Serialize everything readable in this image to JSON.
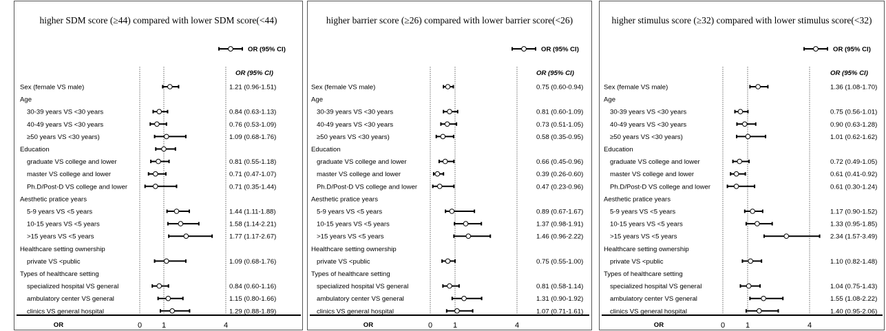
{
  "chart_data": [
    {
      "type": "forest",
      "title": "higher SDM score (≥44) compared with lower SDM score(<44)",
      "legend": "OR (95% CI)",
      "column_header": "OR (95% CI)",
      "xlabel": "OR",
      "xticks": [
        "0",
        "1",
        "4"
      ],
      "rows": [
        {
          "label": "Sex (female VS male)",
          "indent": false,
          "or": 1.21,
          "lo": 0.96,
          "hi": 1.51,
          "text": "1.21 (0.96-1.51)"
        },
        {
          "label": "Age",
          "indent": false
        },
        {
          "label": "30-39 years VS <30 years",
          "indent": true,
          "or": 0.84,
          "lo": 0.63,
          "hi": 1.13,
          "text": "0.84 (0.63-1.13)"
        },
        {
          "label": "40-49 years VS <30 years",
          "indent": true,
          "or": 0.76,
          "lo": 0.53,
          "hi": 1.09,
          "text": "0.76 (0.53-1.09)"
        },
        {
          "label": "≥50 years VS <30 years)",
          "indent": true,
          "or": 1.09,
          "lo": 0.68,
          "hi": 1.76,
          "text": "1.09 (0.68-1.76)"
        },
        {
          "label": "Education",
          "indent": false,
          "or": 1.0,
          "lo": 0.72,
          "hi": 1.4
        },
        {
          "label": "graduate VS college and lower",
          "indent": true,
          "or": 0.81,
          "lo": 0.55,
          "hi": 1.18,
          "text": "0.81 (0.55-1.18)"
        },
        {
          "label": "master VS college and lower",
          "indent": true,
          "or": 0.71,
          "lo": 0.47,
          "hi": 1.07,
          "text": "0.71 (0.47-1.07)"
        },
        {
          "label": "Ph.D/Post-D VS college and lower",
          "indent": true,
          "or": 0.71,
          "lo": 0.35,
          "hi": 1.44,
          "text": "0.71 (0.35-1.44)"
        },
        {
          "label": "Aesthetic pratice years",
          "indent": false
        },
        {
          "label": "5-9 years VS <5 years",
          "indent": true,
          "or": 1.44,
          "lo": 1.11,
          "hi": 1.88,
          "text": "1.44 (1.11-1.88)"
        },
        {
          "label": "10-15 years VS <5 years",
          "indent": true,
          "or": 1.58,
          "lo": 1.14,
          "hi": 2.21,
          "text": "1.58 (1.14-2.21)"
        },
        {
          "label": ">15 years VS <5 years",
          "indent": true,
          "or": 1.77,
          "lo": 1.17,
          "hi": 2.67,
          "text": "1.77 (1.17-2.67)"
        },
        {
          "label": "Healthcare setting ownership",
          "indent": false
        },
        {
          "label": "private VS <public",
          "indent": true,
          "or": 1.09,
          "lo": 0.68,
          "hi": 1.76,
          "text": "1.09 (0.68-1.76)"
        },
        {
          "label": "Types of healthcare setting",
          "indent": false
        },
        {
          "label": "specialized hospital VS general",
          "indent": true,
          "or": 0.84,
          "lo": 0.6,
          "hi": 1.16,
          "text": "0.84 (0.60-1.16)"
        },
        {
          "label": "ambulatory center VS general",
          "indent": true,
          "or": 1.15,
          "lo": 0.8,
          "hi": 1.66,
          "text": "1.15 (0.80-1.66)"
        },
        {
          "label": "clinics VS general hospital",
          "indent": true,
          "or": 1.29,
          "lo": 0.88,
          "hi": 1.89,
          "text": "1.29 (0.88-1.89)"
        }
      ]
    },
    {
      "type": "forest",
      "title": "higher barrier score (≥26) compared with lower barrier score(<26)",
      "legend": "OR (95% CI)",
      "column_header": "OR (95% CI)",
      "xlabel": "OR",
      "xticks": [
        "0",
        "1",
        "4"
      ],
      "rows": [
        {
          "label": "Sex (female VS male)",
          "indent": false,
          "or": 0.75,
          "lo": 0.6,
          "hi": 0.94,
          "text": "0.75 (0.60-0.94)"
        },
        {
          "label": "Age",
          "indent": false
        },
        {
          "label": "30-39 years VS <30 years",
          "indent": true,
          "or": 0.81,
          "lo": 0.6,
          "hi": 1.09,
          "text": "0.81 (0.60-1.09)"
        },
        {
          "label": "40-49 years VS <30 years",
          "indent": true,
          "or": 0.73,
          "lo": 0.51,
          "hi": 1.05,
          "text": "0.73 (0.51-1.05)"
        },
        {
          "label": "≥50 years VS <30 years)",
          "indent": true,
          "or": 0.58,
          "lo": 0.35,
          "hi": 0.95,
          "text": "0.58 (0.35-0.95)"
        },
        {
          "label": "Education",
          "indent": false
        },
        {
          "label": "graduate VS college and lower",
          "indent": true,
          "or": 0.66,
          "lo": 0.45,
          "hi": 0.96,
          "text": "0.66 (0.45-0.96)"
        },
        {
          "label": "master VS college and lower",
          "indent": true,
          "or": 0.39,
          "lo": 0.26,
          "hi": 0.6,
          "text": "0.39 (0.26-0.60)"
        },
        {
          "label": "Ph.D/Post-D VS college and lower",
          "indent": true,
          "or": 0.47,
          "lo": 0.23,
          "hi": 0.96,
          "text": "0.47 (0.23-0.96)"
        },
        {
          "label": "Aesthetic pratice years",
          "indent": false
        },
        {
          "label": "5-9 years VS <5 years",
          "indent": true,
          "or": 0.89,
          "lo": 0.67,
          "hi": 1.67,
          "text": "0.89 (0.67-1.67)"
        },
        {
          "label": "10-15 years VS <5 years",
          "indent": true,
          "or": 1.37,
          "lo": 0.98,
          "hi": 1.91,
          "text": "1.37 (0.98-1.91)"
        },
        {
          "label": ">15 years VS <5 years",
          "indent": true,
          "or": 1.46,
          "lo": 0.96,
          "hi": 2.22,
          "text": "1.46 (0.96-2.22)"
        },
        {
          "label": "Healthcare setting ownership",
          "indent": false
        },
        {
          "label": "private VS <public",
          "indent": true,
          "or": 0.75,
          "lo": 0.55,
          "hi": 1.0,
          "text": "0.75 (0.55-1.00)"
        },
        {
          "label": "Types of healthcare setting",
          "indent": false
        },
        {
          "label": "specialized hospital VS general",
          "indent": true,
          "or": 0.81,
          "lo": 0.58,
          "hi": 1.14,
          "text": "0.81 (0.58-1.14)"
        },
        {
          "label": "ambulatory center VS general",
          "indent": true,
          "or": 1.31,
          "lo": 0.9,
          "hi": 1.92,
          "text": "1.31 (0.90-1.92)"
        },
        {
          "label": "clinics VS general hospital",
          "indent": true,
          "or": 1.07,
          "lo": 0.71,
          "hi": 1.61,
          "text": "1.07 (0.71-1.61)"
        }
      ]
    },
    {
      "type": "forest",
      "title": "higher stimulus score (≥32) compared with lower stimulus score(<32)",
      "legend": "OR (95% CI)",
      "column_header": "OR (95% CI)",
      "xlabel": "OR",
      "xticks": [
        "0",
        "1",
        "4"
      ],
      "rows": [
        {
          "label": "Sex (female VS male)",
          "indent": false,
          "or": 1.36,
          "lo": 1.08,
          "hi": 1.7,
          "text": "1.36 (1.08-1.70)"
        },
        {
          "label": "Age",
          "indent": false
        },
        {
          "label": "30-39 years VS <30 years",
          "indent": true,
          "or": 0.75,
          "lo": 0.56,
          "hi": 1.01,
          "text": "0.75 (0.56-1.01)"
        },
        {
          "label": "40-49 years VS <30 years",
          "indent": true,
          "or": 0.9,
          "lo": 0.63,
          "hi": 1.28,
          "text": "0.90 (0.63-1.28)"
        },
        {
          "label": "≥50 years VS <30 years)",
          "indent": true,
          "or": 1.01,
          "lo": 0.62,
          "hi": 1.62,
          "text": "1.01 (0.62-1.62)"
        },
        {
          "label": "Education",
          "indent": false
        },
        {
          "label": "graduate VS college and lower",
          "indent": true,
          "or": 0.72,
          "lo": 0.49,
          "hi": 1.05,
          "text": "0.72 (0.49-1.05)"
        },
        {
          "label": "master VS college and lower",
          "indent": true,
          "or": 0.61,
          "lo": 0.41,
          "hi": 0.92,
          "text": "0.61 (0.41-0.92)"
        },
        {
          "label": "Ph.D/Post-D VS college and lower",
          "indent": true,
          "or": 0.61,
          "lo": 0.3,
          "hi": 1.24,
          "text": "0.61 (0.30-1.24)"
        },
        {
          "label": "Aesthetic pratice years",
          "indent": false
        },
        {
          "label": "5-9 years VS <5 years",
          "indent": true,
          "or": 1.17,
          "lo": 0.9,
          "hi": 1.52,
          "text": "1.17 (0.90-1.52)"
        },
        {
          "label": "10-15 years VS <5 years",
          "indent": true,
          "or": 1.33,
          "lo": 0.95,
          "hi": 1.85,
          "text": "1.33 (0.95-1.85)"
        },
        {
          "label": ">15 years VS <5 years",
          "indent": true,
          "or": 2.34,
          "lo": 1.57,
          "hi": 3.49,
          "text": "2.34 (1.57-3.49)"
        },
        {
          "label": "Healthcare setting ownership",
          "indent": false
        },
        {
          "label": "private VS <public",
          "indent": true,
          "or": 1.1,
          "lo": 0.82,
          "hi": 1.48,
          "text": "1.10 (0.82-1.48)"
        },
        {
          "label": "Types of healthcare setting",
          "indent": false
        },
        {
          "label": "specialized hospital VS general",
          "indent": true,
          "or": 1.04,
          "lo": 0.75,
          "hi": 1.43,
          "text": "1.04 (0.75-1.43)"
        },
        {
          "label": "ambulatory center VS general",
          "indent": true,
          "or": 1.55,
          "lo": 1.08,
          "hi": 2.22,
          "text": "1.55 (1.08-2.22)"
        },
        {
          "label": "clinics VS general hospital",
          "indent": true,
          "or": 1.4,
          "lo": 0.95,
          "hi": 2.06,
          "text": "1.40 (0.95-2.06)"
        }
      ]
    }
  ]
}
